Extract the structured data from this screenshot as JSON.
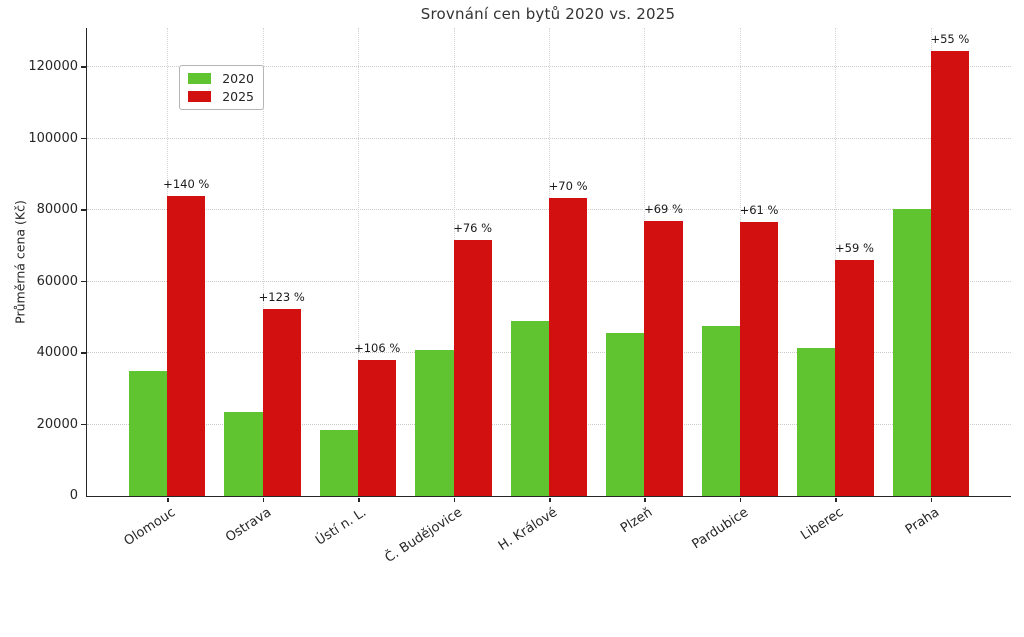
{
  "chart_data": {
    "type": "bar",
    "title": "Srovnání cen bytů 2020 vs. 2025",
    "xlabel": "",
    "ylabel": "Průměrná cena (Kč)",
    "categories": [
      "Olomouc",
      "Ostrava",
      "Ústí n. L.",
      "Č. Budějovice",
      "H. Králové",
      "Plzeň",
      "Pardubice",
      "Liberec",
      "Praha"
    ],
    "series": [
      {
        "name": "2020",
        "color": "#5fc430",
        "values": [
          35000,
          23500,
          18500,
          40800,
          49000,
          45500,
          47700,
          41500,
          80300
        ]
      },
      {
        "name": "2025",
        "color": "#d21010",
        "values": [
          84000,
          52400,
          38100,
          71800,
          83300,
          76900,
          76800,
          66000,
          124500
        ]
      }
    ],
    "annotations": [
      "+140 %",
      "+123 %",
      "+106 %",
      "+76 %",
      "+70 %",
      "+69 %",
      "+61 %",
      "+59 %",
      "+55 %"
    ],
    "yticks": [
      0,
      20000,
      40000,
      60000,
      80000,
      100000,
      120000
    ],
    "ylim": [
      0,
      131000
    ],
    "grid": "dotted, both axes",
    "legend_position": "upper left",
    "legend_entries": [
      "2020",
      "2025"
    ]
  },
  "colors": {
    "bar_2020": "#5fc430",
    "bar_2025": "#d21010",
    "axis": "#262626",
    "grid": "#cccccc",
    "title_text": "#333333",
    "background": "#ffffff"
  }
}
